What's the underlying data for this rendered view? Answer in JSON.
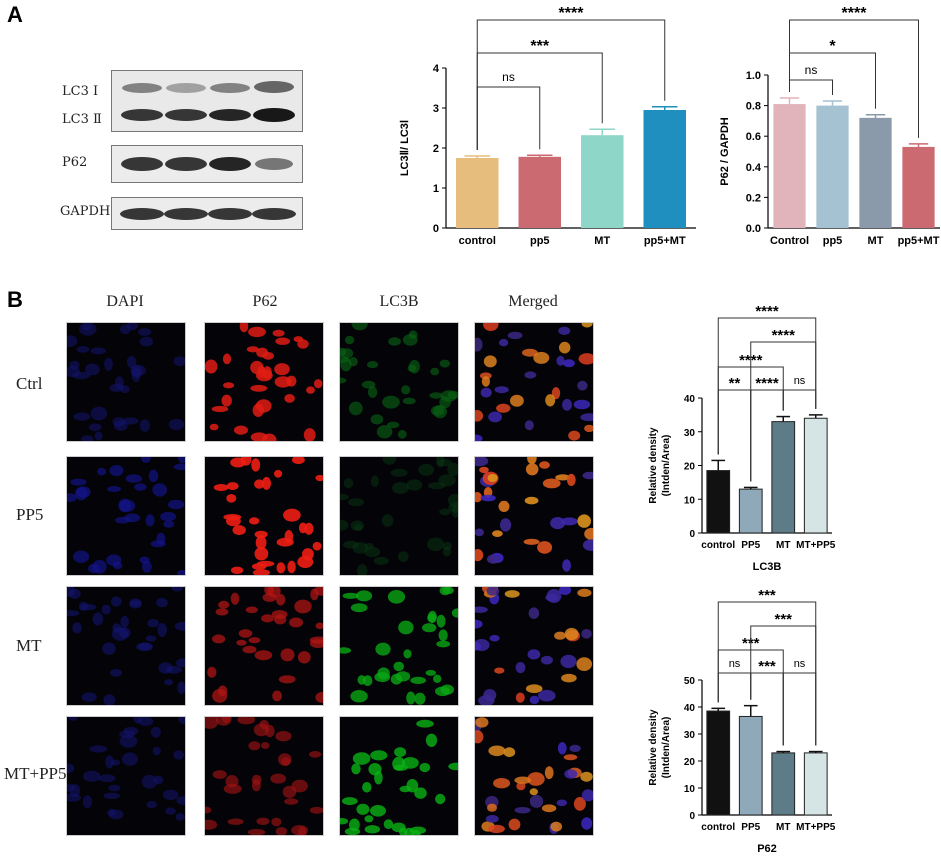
{
  "panels": {
    "a": "A",
    "b": "B"
  },
  "blot": {
    "labels": [
      "LC3 Ⅰ",
      "LC3 Ⅱ",
      "P62",
      "GAPDH"
    ]
  },
  "if_images": {
    "columns": [
      "DAPI",
      "P62",
      "LC3B",
      "Merged"
    ],
    "rows": [
      "Ctrl",
      "PP5",
      "MT",
      "MT+PP5"
    ]
  },
  "colors": {
    "a1": [
      "#e6bd7c",
      "#cc6a72",
      "#8ed6c7",
      "#1f8fbf"
    ],
    "a2": [
      "#e1b3ba",
      "#a4c2d2",
      "#8a9aaa",
      "#cc6a72"
    ],
    "b": [
      "#111111",
      "#8fa8ba",
      "#5e7b88",
      "#d5e5e6"
    ]
  },
  "chart_data": [
    {
      "type": "bar",
      "categories": [
        "control",
        "pp5",
        "MT",
        "pp5+MT"
      ],
      "values": [
        1.75,
        1.78,
        2.32,
        2.95
      ],
      "errors": [
        0.05,
        0.04,
        0.15,
        0.08
      ],
      "ylabel": "LC3Ⅱ/ LC3Ⅰ",
      "ylim": [
        0,
        4
      ],
      "yticks": [
        "0",
        "1",
        "2",
        "3",
        "4"
      ],
      "brackets": [
        {
          "from": 0,
          "to": 1,
          "label": "ns"
        },
        {
          "from": 0,
          "to": 2,
          "label": "***"
        },
        {
          "from": 0,
          "to": 3,
          "label": "****"
        }
      ]
    },
    {
      "type": "bar",
      "categories": [
        "Control",
        "pp5",
        "MT",
        "pp5+MT"
      ],
      "values": [
        0.81,
        0.8,
        0.72,
        0.53
      ],
      "errors": [
        0.04,
        0.03,
        0.02,
        0.02
      ],
      "ylabel": "P62 / GAPDH",
      "ylim": [
        0,
        1.0
      ],
      "yticks": [
        "0.0",
        "0.2",
        "0.4",
        "0.6",
        "0.8",
        "1.0"
      ],
      "brackets": [
        {
          "from": 0,
          "to": 1,
          "label": "ns"
        },
        {
          "from": 0,
          "to": 2,
          "label": "*"
        },
        {
          "from": 0,
          "to": 3,
          "label": "****"
        }
      ]
    },
    {
      "type": "bar",
      "categories": [
        "control",
        "PP5",
        "MT",
        "MT+PP5"
      ],
      "values": [
        18.5,
        13.0,
        33.0,
        34.0
      ],
      "errors": [
        3.0,
        0.5,
        1.5,
        1.0
      ],
      "ylabel": "Relative density",
      "ylabel2": "(Intden/Area)",
      "xlabel": "LC3B",
      "ylim": [
        0,
        40
      ],
      "yticks": [
        "0",
        "10",
        "20",
        "30",
        "40"
      ],
      "brackets": [
        {
          "from": 0,
          "to": 1,
          "label": "**"
        },
        {
          "from": 1,
          "to": 2,
          "label": "****"
        },
        {
          "from": 2,
          "to": 3,
          "label": "ns"
        },
        {
          "from": 0,
          "to": 2,
          "label": "****"
        },
        {
          "from": 1,
          "to": 3,
          "label": "****"
        },
        {
          "from": 0,
          "to": 3,
          "label": "****"
        }
      ]
    },
    {
      "type": "bar",
      "categories": [
        "control",
        "PP5",
        "MT",
        "MT+PP5"
      ],
      "values": [
        38.5,
        36.5,
        23.0,
        23.0
      ],
      "errors": [
        1.0,
        4.0,
        0.5,
        0.5
      ],
      "ylabel": "Relative density",
      "ylabel2": "(Intden/Area)",
      "xlabel": "P62",
      "ylim": [
        0,
        50
      ],
      "yticks": [
        "0",
        "10",
        "20",
        "30",
        "40",
        "50"
      ],
      "brackets": [
        {
          "from": 0,
          "to": 1,
          "label": "ns"
        },
        {
          "from": 1,
          "to": 2,
          "label": "***"
        },
        {
          "from": 2,
          "to": 3,
          "label": "ns"
        },
        {
          "from": 0,
          "to": 2,
          "label": "***"
        },
        {
          "from": 1,
          "to": 3,
          "label": "***"
        },
        {
          "from": 0,
          "to": 3,
          "label": "***"
        }
      ]
    }
  ]
}
